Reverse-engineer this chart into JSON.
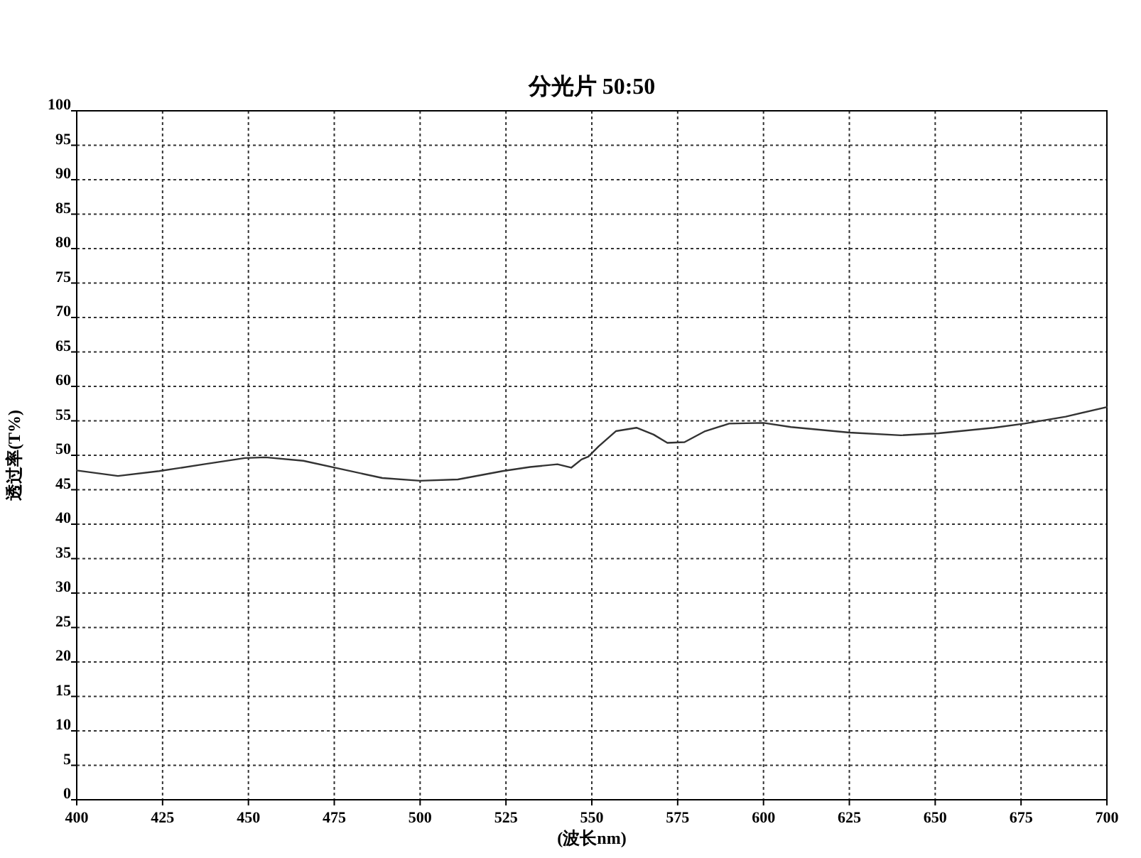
{
  "chart_data": {
    "type": "line",
    "title": "分光片  50:50",
    "xlabel": "(波长nm)",
    "ylabel": "透过率(T%)",
    "xlim": [
      400,
      700
    ],
    "xticks": [
      400,
      425,
      450,
      475,
      500,
      525,
      550,
      575,
      600,
      625,
      650,
      675,
      700
    ],
    "ylim": [
      0,
      100
    ],
    "yticks": [
      0,
      5,
      10,
      15,
      20,
      25,
      30,
      35,
      40,
      45,
      50,
      55,
      60,
      65,
      70,
      75,
      80,
      85,
      90,
      95,
      100
    ],
    "grid": true,
    "line_style": "solid",
    "series": [
      {
        "color": "#333333",
        "x": [
          400,
          412,
          424,
          437,
          449,
          455,
          466,
          477,
          489,
          500,
          511,
          524,
          532,
          540,
          544,
          547,
          549,
          552,
          557,
          563,
          568,
          572,
          577,
          583,
          590,
          600,
          608,
          625,
          640,
          651,
          667,
          676,
          688,
          700
        ],
        "values": [
          47.8,
          47.0,
          47.7,
          48.7,
          49.6,
          49.7,
          49.2,
          48.0,
          46.7,
          46.3,
          46.5,
          47.7,
          48.3,
          48.7,
          48.2,
          49.4,
          49.8,
          51.3,
          53.5,
          54.0,
          53.0,
          51.8,
          51.9,
          53.5,
          54.6,
          54.7,
          54.1,
          53.3,
          52.9,
          53.2,
          54.0,
          54.6,
          55.6,
          57.0
        ]
      }
    ]
  }
}
